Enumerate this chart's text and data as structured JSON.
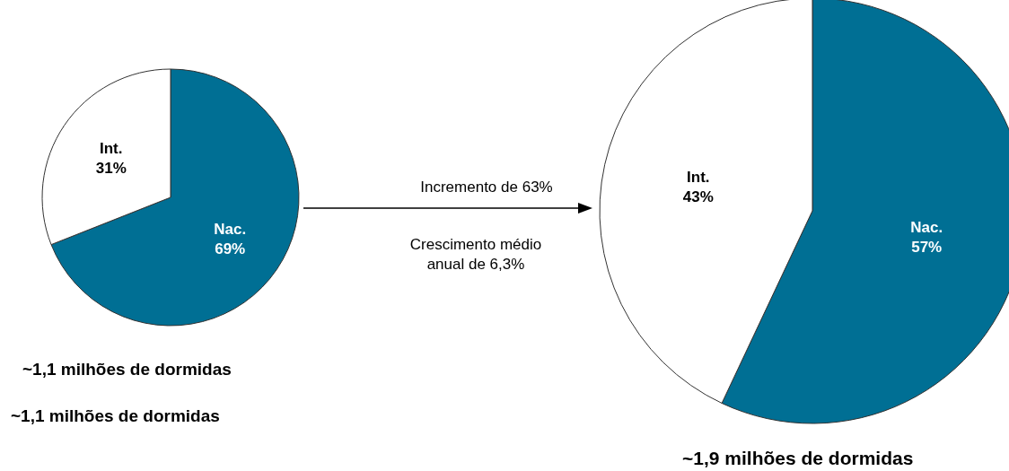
{
  "chart_data": [
    {
      "type": "pie",
      "categories": [
        "Nac.",
        "Int."
      ],
      "values": [
        69,
        31
      ],
      "value_labels": [
        "69%",
        "31%"
      ],
      "colors": [
        "#006f94",
        "#ffffff"
      ],
      "annotations": [
        "~1,1 milhões de dormidas",
        "~1,1 milhões de dormidas"
      ]
    },
    {
      "type": "pie",
      "categories": [
        "Nac.",
        "Int."
      ],
      "values": [
        57,
        43
      ],
      "value_labels": [
        "57%",
        "43%"
      ],
      "colors": [
        "#006f94",
        "#ffffff"
      ],
      "annotations": [
        "~1,9 milhões de dormidas",
        "Incremento de 63%",
        "Crescimento médio anual de 6,3%"
      ]
    }
  ]
}
